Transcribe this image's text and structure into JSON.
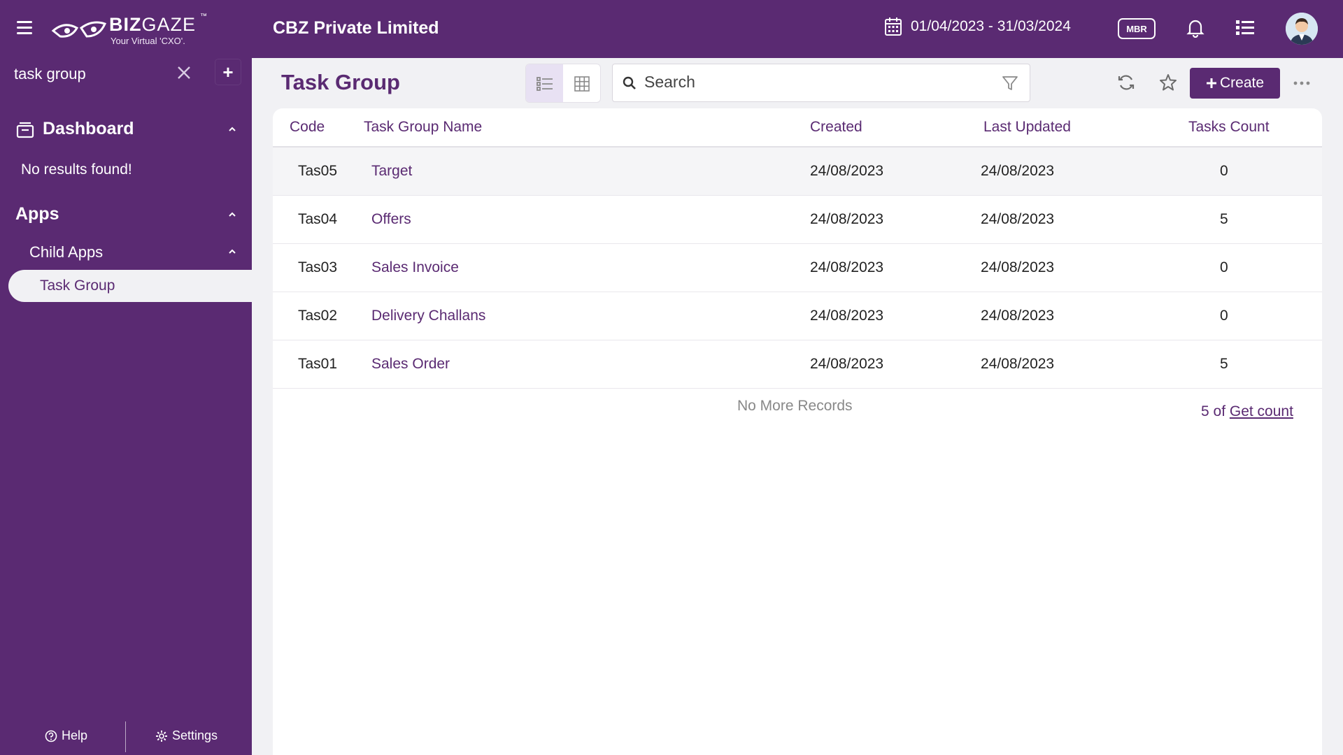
{
  "header": {
    "logo_brand": "BIZ",
    "logo_brand2": "GAZE",
    "logo_tm": "™",
    "logo_tagline": "Your Virtual 'CXO'.",
    "company": "CBZ Private Limited",
    "date_range": "01/04/2023 - 31/03/2024",
    "mbr_label": "MBR"
  },
  "sidebar": {
    "search_value": "task group",
    "dashboard_label": "Dashboard",
    "no_results": "No results found!",
    "apps_label": "Apps",
    "child_apps_label": "Child Apps",
    "active_item": "Task Group",
    "help_label": "Help",
    "settings_label": "Settings"
  },
  "main": {
    "title": "Task Group",
    "search_placeholder": "Search",
    "create_label": "Create"
  },
  "table": {
    "columns": [
      "Code",
      "Task Group Name",
      "Created",
      "Last Updated",
      "Tasks Count"
    ],
    "rows": [
      {
        "code": "Tas05",
        "name": "Target",
        "created": "24/08/2023",
        "updated": "24/08/2023",
        "count": "0"
      },
      {
        "code": "Tas04",
        "name": "Offers",
        "created": "24/08/2023",
        "updated": "24/08/2023",
        "count": "5"
      },
      {
        "code": "Tas03",
        "name": "Sales Invoice",
        "created": "24/08/2023",
        "updated": "24/08/2023",
        "count": "0"
      },
      {
        "code": "Tas02",
        "name": "Delivery Challans",
        "created": "24/08/2023",
        "updated": "24/08/2023",
        "count": "0"
      },
      {
        "code": "Tas01",
        "name": "Sales Order",
        "created": "24/08/2023",
        "updated": "24/08/2023",
        "count": "5"
      }
    ],
    "no_more": "No More Records",
    "count_prefix": "5 of",
    "get_count": "Get count"
  },
  "colors": {
    "brand": "#5a2a72",
    "background": "#f1f1f4"
  }
}
